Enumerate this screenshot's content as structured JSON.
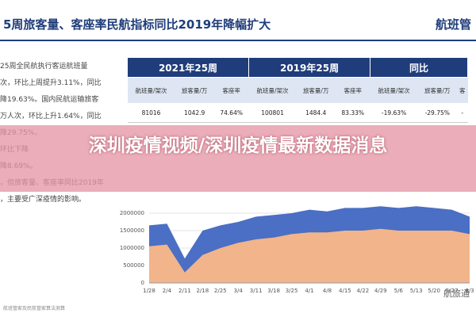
{
  "header": {
    "title": "5周旅客量、客座率民航指标同比2019年降幅扩大",
    "logo": "航班管"
  },
  "notes": [
    "25周全民航执行客运航班量",
    "次，环比上周提升3.11%，同比",
    "降19.63%。国内民航运输旅客",
    "万人次，环比上升1.64%，同比",
    "降29.75%，",
    "环比下降",
    "降8.69%。",
    "，但旅客量、客座率同比2019年",
    "，主要受广深疫情的影响。"
  ],
  "table": {
    "groups": [
      "2021年25周",
      "2019年25周",
      "同比"
    ],
    "columns": [
      "航班量/架次",
      "旅客量/万",
      "客座率",
      "航班量/架次",
      "旅客量/万",
      "客座率",
      "航班量/架次",
      "旅客量/万",
      "客"
    ],
    "rows": [
      [
        "81016",
        "1042.9",
        "74.64%",
        "100801",
        "1484.4",
        "83.33%",
        "-19.63%",
        "-29.75%",
        "-"
      ]
    ]
  },
  "chart_data": {
    "type": "area",
    "categories": [
      "1/28",
      "2/4",
      "2/11",
      "2/18",
      "2/25",
      "3/4",
      "3/11",
      "3/18",
      "3/25",
      "4/1",
      "4/8",
      "4/15",
      "4/22",
      "4/29",
      "5/6",
      "5/13",
      "5/20",
      "5/27",
      "6/3"
    ],
    "series": [
      {
        "color": "#4a6fc4",
        "values": [
          1650000,
          1700000,
          700000,
          1500000,
          1650000,
          1750000,
          1900000,
          1950000,
          2000000,
          2100000,
          2050000,
          2150000,
          2150000,
          2200000,
          2150000,
          2200000,
          2150000,
          2100000,
          1900000
        ]
      },
      {
        "color": "#f2b48a",
        "values": [
          1050000,
          1100000,
          300000,
          800000,
          1000000,
          1150000,
          1250000,
          1300000,
          1400000,
          1450000,
          1450000,
          1500000,
          1500000,
          1550000,
          1500000,
          1500000,
          1500000,
          1500000,
          1400000
        ]
      }
    ],
    "ylim": [
      0,
      2500000
    ],
    "yticks": [
      0,
      500000,
      1000000,
      1500000,
      2000000
    ]
  },
  "overlay": {
    "title": "深圳疫情视频/深圳疫情最新数据消息"
  },
  "source": "航班管家及民航管家算法测算",
  "watermark": "航旅通"
}
